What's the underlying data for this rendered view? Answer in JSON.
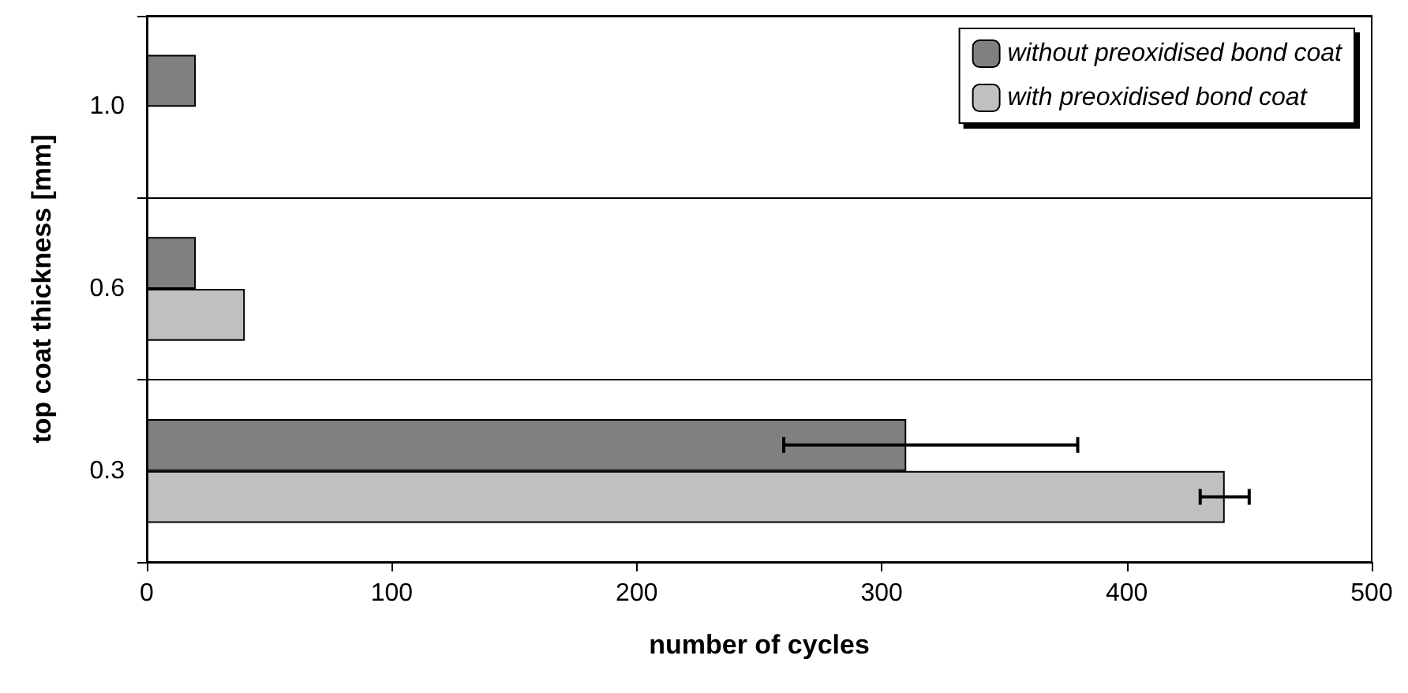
{
  "chart_data": {
    "type": "bar",
    "orientation": "horizontal",
    "xlabel": "number of cycles",
    "ylabel": "top coat thickness [mm]",
    "categories": [
      "1.0",
      "0.6",
      "0.3"
    ],
    "series": [
      {
        "name": "without preoxidised bond coat",
        "color": "#808080",
        "values": [
          20,
          20,
          310
        ],
        "errors": [
          null,
          null,
          [
            260,
            380
          ]
        ]
      },
      {
        "name": "with preoxidised bond coat",
        "color": "#c0c0c0",
        "values": [
          null,
          40,
          440
        ],
        "errors": [
          null,
          null,
          [
            430,
            450
          ]
        ]
      }
    ],
    "xlim": [
      0,
      500
    ],
    "xticks": [
      0,
      100,
      200,
      300,
      400,
      500
    ],
    "grid": "y",
    "legend": "top right"
  }
}
